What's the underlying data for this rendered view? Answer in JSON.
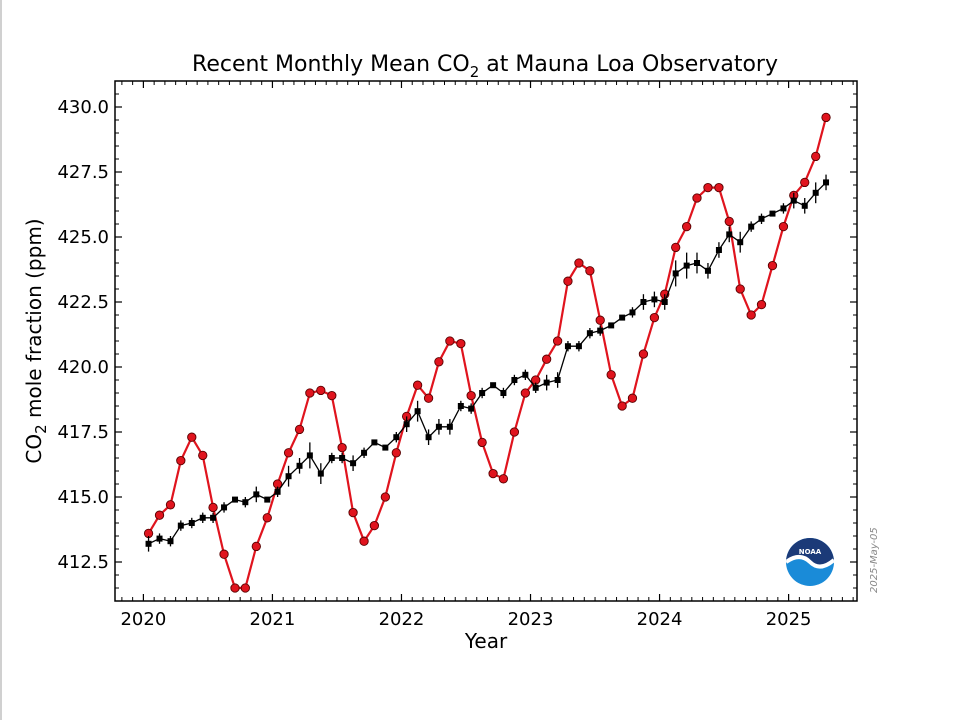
{
  "chart_data": {
    "type": "line",
    "title_main": "Recent Monthly Mean CO",
    "title_sub": "2",
    "title_rest": " at Mauna Loa Observatory",
    "xlabel": "Year",
    "ylabel_main": "CO",
    "ylabel_sub": "2",
    "ylabel_rest": " mole fraction (ppm)",
    "xlim": [
      2019.78,
      2025.53
    ],
    "ylim": [
      411.0,
      431.0
    ],
    "xticks": [
      2020,
      2021,
      2022,
      2023,
      2024,
      2025
    ],
    "xtick_labels": [
      "2020",
      "2021",
      "2022",
      "2023",
      "2024",
      "2025"
    ],
    "yticks": [
      412.5,
      415.0,
      417.5,
      420.0,
      422.5,
      425.0,
      427.5,
      430.0
    ],
    "ytick_labels": [
      "412.5",
      "415.0",
      "417.5",
      "420.0",
      "422.5",
      "425.0",
      "427.5",
      "430.0"
    ],
    "date_stamp": "2025-May-05",
    "logo_text": "NOAA",
    "colors": {
      "monthly_mean": "#e0141e",
      "marker_edge": "#5a0000",
      "trend": "#000000"
    },
    "series": [
      {
        "style": "red-circles",
        "x": [
          2020.04,
          2020.125,
          2020.21,
          2020.29,
          2020.375,
          2020.46,
          2020.54,
          2020.625,
          2020.71,
          2020.79,
          2020.875,
          2020.96,
          2021.04,
          2021.125,
          2021.21,
          2021.29,
          2021.375,
          2021.46,
          2021.54,
          2021.625,
          2021.71,
          2021.79,
          2021.875,
          2021.96,
          2022.04,
          2022.125,
          2022.21,
          2022.29,
          2022.375,
          2022.46,
          2022.54,
          2022.625,
          2022.71,
          2022.79,
          2022.875,
          2022.96,
          2023.04,
          2023.125,
          2023.21,
          2023.29,
          2023.375,
          2023.46,
          2023.54,
          2023.625,
          2023.71,
          2023.79,
          2023.875,
          2023.96,
          2024.04,
          2024.125,
          2024.21,
          2024.29,
          2024.375,
          2024.46,
          2024.54,
          2024.625,
          2024.71,
          2024.79,
          2024.875,
          2024.96,
          2025.04,
          2025.125,
          2025.21,
          2025.29
        ],
        "y": [
          413.6,
          414.3,
          414.7,
          416.4,
          417.3,
          416.6,
          414.6,
          412.8,
          411.5,
          411.5,
          413.1,
          414.2,
          415.5,
          416.7,
          417.6,
          419.0,
          419.1,
          418.9,
          416.9,
          414.4,
          413.3,
          413.9,
          415.0,
          416.7,
          418.1,
          419.3,
          418.8,
          420.2,
          421.0,
          420.9,
          418.9,
          417.1,
          415.9,
          415.7,
          417.5,
          419.0,
          419.5,
          420.3,
          421.0,
          423.3,
          424.0,
          423.7,
          421.8,
          419.7,
          418.5,
          418.8,
          420.5,
          421.9,
          422.8,
          424.6,
          425.4,
          426.5,
          426.9,
          426.9,
          425.6,
          423.0,
          422.0,
          422.4,
          423.9,
          425.4,
          426.6,
          427.1,
          428.1,
          429.6
        ]
      },
      {
        "style": "black-squares",
        "x": [
          2020.04,
          2020.125,
          2020.21,
          2020.29,
          2020.375,
          2020.46,
          2020.54,
          2020.625,
          2020.71,
          2020.79,
          2020.875,
          2020.96,
          2021.04,
          2021.125,
          2021.21,
          2021.29,
          2021.375,
          2021.46,
          2021.54,
          2021.625,
          2021.71,
          2021.79,
          2021.875,
          2021.96,
          2022.04,
          2022.125,
          2022.21,
          2022.29,
          2022.375,
          2022.46,
          2022.54,
          2022.625,
          2022.71,
          2022.79,
          2022.875,
          2022.96,
          2023.04,
          2023.125,
          2023.21,
          2023.29,
          2023.375,
          2023.46,
          2023.54,
          2023.625,
          2023.71,
          2023.79,
          2023.875,
          2023.96,
          2024.04,
          2024.125,
          2024.21,
          2024.29,
          2024.375,
          2024.46,
          2024.54,
          2024.625,
          2024.71,
          2024.79,
          2024.875,
          2024.96,
          2025.04,
          2025.125,
          2025.21,
          2025.29
        ],
        "y": [
          413.2,
          413.4,
          413.3,
          413.9,
          414.0,
          414.2,
          414.2,
          414.6,
          414.9,
          414.8,
          415.1,
          414.9,
          415.2,
          415.8,
          416.2,
          416.6,
          415.9,
          416.5,
          416.5,
          416.3,
          416.7,
          417.1,
          416.9,
          417.3,
          417.8,
          418.3,
          417.3,
          417.7,
          417.7,
          418.5,
          418.4,
          419.0,
          419.3,
          419.0,
          419.5,
          419.7,
          419.2,
          419.4,
          419.5,
          420.8,
          420.8,
          421.3,
          421.4,
          421.6,
          421.9,
          422.1,
          422.5,
          422.6,
          422.5,
          423.6,
          423.9,
          424.0,
          423.7,
          424.5,
          425.1,
          424.8,
          425.4,
          425.7,
          425.9,
          426.1,
          426.4,
          426.2,
          426.7,
          427.1
        ],
        "y_err": [
          0.3,
          0.2,
          0.2,
          0.2,
          0.2,
          0.2,
          0.2,
          0.2,
          0.1,
          0.2,
          0.3,
          0.1,
          0.2,
          0.4,
          0.3,
          0.5,
          0.4,
          0.2,
          0.2,
          0.3,
          0.2,
          0.1,
          0.1,
          0.2,
          0.3,
          0.4,
          0.3,
          0.3,
          0.3,
          0.2,
          0.2,
          0.2,
          0.1,
          0.2,
          0.2,
          0.2,
          0.2,
          0.3,
          0.3,
          0.2,
          0.2,
          0.2,
          0.2,
          0.1,
          0.1,
          0.2,
          0.3,
          0.3,
          0.3,
          0.5,
          0.5,
          0.4,
          0.3,
          0.3,
          0.3,
          0.4,
          0.2,
          0.2,
          0.1,
          0.2,
          0.3,
          0.3,
          0.4,
          0.3
        ]
      }
    ]
  }
}
